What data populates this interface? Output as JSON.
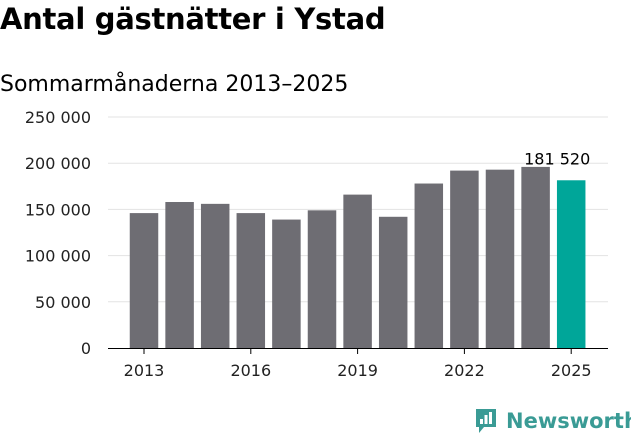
{
  "chart_data": {
    "type": "bar",
    "title": "Antal gästnätter i Ystad",
    "subtitle": "Sommarmånaderna 2013–2025",
    "categories": [
      "2013",
      "2014",
      "2015",
      "2016",
      "2017",
      "2018",
      "2019",
      "2020",
      "2021",
      "2022",
      "2023",
      "2024",
      "2025"
    ],
    "values": [
      146000,
      158000,
      156000,
      146000,
      139000,
      149000,
      166000,
      142000,
      178000,
      192000,
      193000,
      196000,
      181520
    ],
    "x_tick_labels": [
      "2013",
      "2016",
      "2019",
      "2022",
      "2025"
    ],
    "y_ticks": [
      0,
      50000,
      100000,
      150000,
      200000,
      250000
    ],
    "y_tick_labels": [
      "0",
      "50 000",
      "100 000",
      "150 000",
      "200 000",
      "250 000"
    ],
    "ylim": [
      0,
      250000
    ],
    "grid": true,
    "data_labels": [
      {
        "category": "2025",
        "text": "181 520"
      }
    ],
    "colors": {
      "default_bar": "#6e6d73",
      "highlight_bar": "#00a699",
      "grid": "#e3e3e3",
      "axis": "#000000"
    },
    "highlight_index": 12
  },
  "branding": {
    "name": "Newsworthy",
    "color": "#3a9b95",
    "icon": "bar-chart-speech-bubble-icon"
  }
}
